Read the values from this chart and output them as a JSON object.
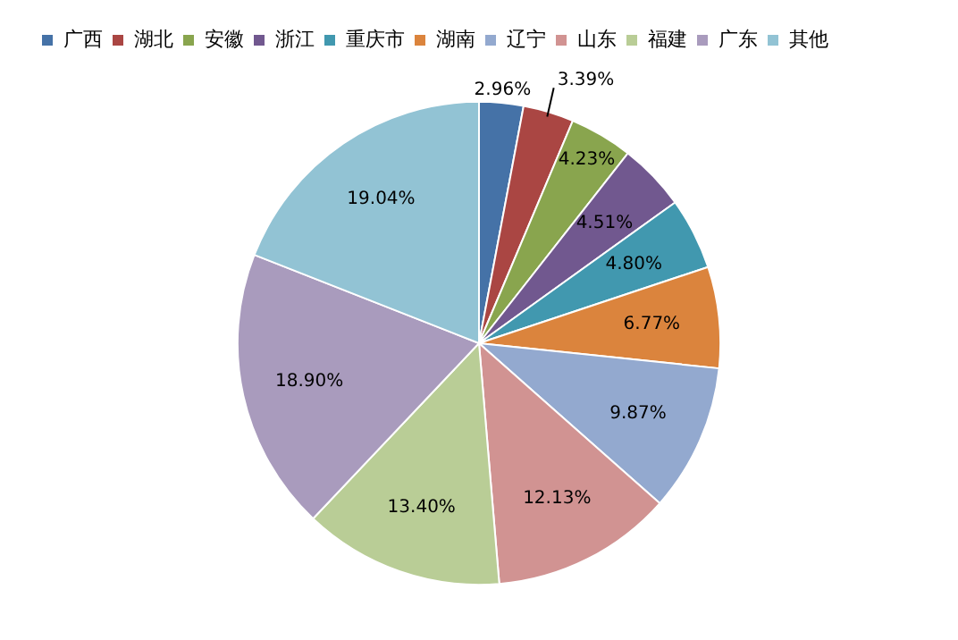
{
  "chart_data": {
    "type": "pie",
    "categories": [
      "广西",
      "湖北",
      "安徽",
      "浙江",
      "重庆市",
      "湖南",
      "辽宁",
      "山东",
      "福建",
      "广东",
      "其他"
    ],
    "values": [
      2.96,
      3.39,
      4.23,
      4.51,
      4.8,
      6.77,
      9.87,
      12.13,
      13.4,
      18.9,
      19.04
    ],
    "colors": [
      "#4572a7",
      "#aa4643",
      "#89a54e",
      "#71588f",
      "#4198af",
      "#db843d",
      "#93a9cf",
      "#d19392",
      "#b9cd96",
      "#a99bbd",
      "#92c3d4"
    ],
    "value_labels": [
      "2.96%",
      "3.39%",
      "4.23%",
      "4.51%",
      "4.80%",
      "6.77%",
      "9.87%",
      "12.13%",
      "13.40%",
      "18.90%",
      "19.04%"
    ],
    "legend": "top"
  }
}
